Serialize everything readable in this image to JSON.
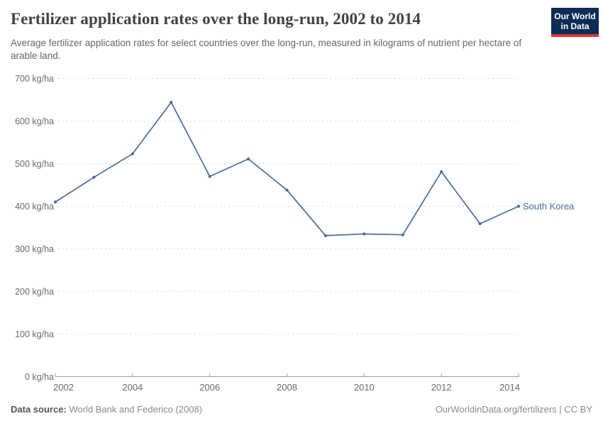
{
  "header": {
    "title": "Fertilizer application rates over the long-run, 2002 to 2014",
    "subtitle": "Average fertilizer application rates for select countries over the long-run, measured in kilograms of nutrient per hectare of arable land.",
    "logo": {
      "line1": "Our World",
      "line2": "in Data"
    }
  },
  "chart_data": {
    "type": "line",
    "title": "Fertilizer application rates over the long-run, 2002 to 2014",
    "xlabel": "",
    "ylabel": "kg of nutrient per hectare of arable land",
    "x": [
      2002,
      2003,
      2004,
      2005,
      2006,
      2007,
      2008,
      2009,
      2010,
      2011,
      2012,
      2013,
      2014
    ],
    "series": [
      {
        "name": "South Korea",
        "color": "#4c6a9c",
        "values": [
          410,
          468,
          523,
          644,
          470,
          511,
          438,
          331,
          335,
          333,
          481,
          359,
          400
        ]
      }
    ],
    "ylim": [
      0,
      700
    ],
    "xlim": [
      2002,
      2014
    ],
    "y_ticks": [
      0,
      100,
      200,
      300,
      400,
      500,
      600,
      700
    ],
    "y_tick_labels": [
      "0 kg/ha",
      "100 kg/ha",
      "200 kg/ha",
      "300 kg/ha",
      "400 kg/ha",
      "500 kg/ha",
      "600 kg/ha",
      "700 kg/ha"
    ],
    "x_ticks": [
      2002,
      2004,
      2006,
      2008,
      2010,
      2012,
      2014
    ],
    "x_tick_labels": [
      "2002",
      "2004",
      "2006",
      "2008",
      "2010",
      "2012",
      "2014"
    ],
    "grid": "horizontal-dashed",
    "legend": "end-of-line-label"
  },
  "footer": {
    "source_label": "Data source:",
    "source_value": " World Bank and Federico (2008)",
    "link_text": "OurWorldinData.org/fertilizers | CC BY"
  },
  "colors": {
    "line": "#4c6a9c",
    "gridline": "#dcdcdc",
    "axis": "#9e9e9e",
    "logo_navy": "#0c2c56",
    "logo_red": "#d8352f"
  }
}
